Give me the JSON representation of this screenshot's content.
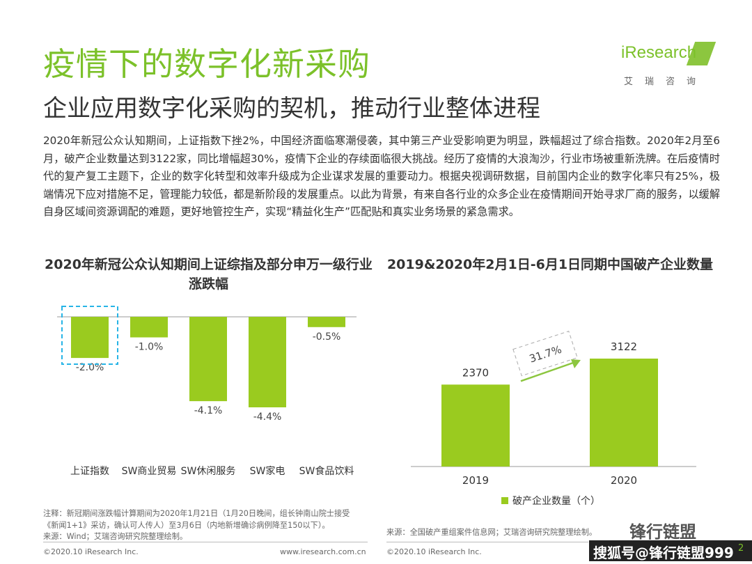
{
  "header": {
    "title": "疫情下的数字化新采购",
    "subtitle": "企业应用数字化采购的契机，推动行业整体进程"
  },
  "logo": {
    "text": "iResearch",
    "cn": "艾瑞咨询"
  },
  "body": "2020年新冠公众认知期间，上证指数下挫2%，中国经济面临寒潮侵袭，其中第三产业受影响更为明显，跌幅超过了综合指数。2020年2月至6月，破产企业数量达到3122家，同比增幅超30%，疫情下企业的存续面临很大挑战。经历了疫情的大浪淘沙，行业市场被重新洗牌。在后疫情时代的复产复工主题下，企业的数字化转型和效率升级成为企业谋求发展的重要动力。根据央视调研数据，目前国内企业的数字化率只有25%，极端情况下应对措施不足，管理能力较低，都是新阶段的发展重点。以此为背景，有来自各行业的众多企业在疫情期间开始寻求厂商的服务，以缓解自身区域间资源调配的难题，更好地管控生产，实现“精益化生产”匹配贴和真实业务场景的紧急需求。",
  "colors": {
    "accent": "#7cc12a",
    "bar": "#9acb1f",
    "highlight_box": "#27b4e6",
    "arrow": "#8cc63f"
  },
  "chart_data": [
    {
      "type": "bar",
      "title": "2020年新冠公众认知期间上证综指及部分申万一级行业涨跌幅",
      "categories": [
        "上证指数",
        "SW商业贸易",
        "SW休闲服务",
        "SW家电",
        "SW食品饮料"
      ],
      "values": [
        -2.0,
        -1.0,
        -4.1,
        -4.4,
        -0.5
      ],
      "labels": [
        "-2.0%",
        "-1.0%",
        "-4.1%",
        "-4.4%",
        "-0.5%"
      ],
      "unit": "%",
      "highlight": "上证指数",
      "ylim": [
        -4.4,
        0
      ],
      "grid": false
    },
    {
      "type": "bar",
      "title": "2019&2020年2月1日-6月1日同期中国破产企业数量",
      "categories": [
        "2019",
        "2020"
      ],
      "values": [
        2370,
        3122
      ],
      "labels": [
        "2370",
        "3122"
      ],
      "series": [
        {
          "name": "破产企业数量（个）",
          "values": [
            2370,
            3122
          ]
        }
      ],
      "growth_label": "31.7%",
      "ylim": [
        0,
        3122
      ],
      "legend": "bottom",
      "grid": false
    }
  ],
  "notes": {
    "left": [
      "注释：新冠期间涨跌幅计算期间为2020年1月21日（1月20日晚间，组长钟南山院士接受",
      "《新闻1+1》采访，确认可人传人）至3月6日（内地新增确诊病例降至150以下）。",
      "来源：Wind；艾瑞咨询研究院整理绘制。"
    ],
    "right": "来源：全国破产重组案件信息网；艾瑞咨询研究院整理绘制。"
  },
  "footer": {
    "copyright_left": "©2020.10 iResearch Inc.",
    "url": "www.iresearch.com.cn",
    "copyright_right": "©2020.10 iResearch Inc.",
    "page_number": "2"
  },
  "watermark": {
    "brand": "锋行链盟",
    "label": "搜狐号@锋行链盟999"
  }
}
